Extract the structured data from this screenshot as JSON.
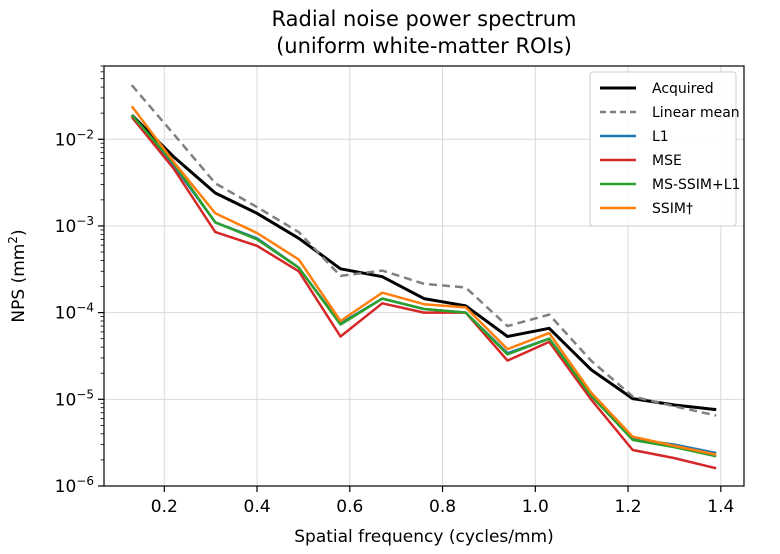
{
  "chart_data": {
    "type": "line",
    "title": [
      "Radial noise power spectrum",
      "(uniform white-matter ROIs)"
    ],
    "xlabel": "Spatial frequency (cycles/mm)",
    "ylabel": "NPS (mm²)",
    "xlim": [
      0.07,
      1.45
    ],
    "ylim": [
      1e-06,
      0.07
    ],
    "yscale": "log",
    "grid": true,
    "legend_position": "top-right",
    "x_ticks": [
      0.2,
      0.4,
      0.6,
      0.8,
      1.0,
      1.2,
      1.4
    ],
    "x_tick_labels": [
      "0.2",
      "0.4",
      "0.6",
      "0.8",
      "1.0",
      "1.2",
      "1.4"
    ],
    "y_ticks": [
      {
        "value": 1e-06,
        "base": "10",
        "exp": "−6"
      },
      {
        "value": 1e-05,
        "base": "10",
        "exp": "−5"
      },
      {
        "value": 0.0001,
        "base": "10",
        "exp": "−4"
      },
      {
        "value": 0.001,
        "base": "10",
        "exp": "−3"
      },
      {
        "value": 0.01,
        "base": "10",
        "exp": "−2"
      }
    ],
    "x": [
      0.13,
      0.22,
      0.31,
      0.4,
      0.49,
      0.58,
      0.67,
      0.76,
      0.85,
      0.94,
      1.03,
      1.12,
      1.21,
      1.3,
      1.39
    ],
    "series": [
      {
        "name": "Acquired",
        "color": "#000000",
        "dash": "",
        "width": 3,
        "values": [
          0.019,
          0.0063,
          0.0024,
          0.0014,
          0.00072,
          0.00032,
          0.00026,
          0.000145,
          0.00012,
          5.3e-05,
          6.6e-05,
          2.2e-05,
          1.02e-05,
          8.6e-06,
          7.6e-06
        ]
      },
      {
        "name": "Linear mean",
        "color": "#808080",
        "dash": "8,5",
        "width": 2.5,
        "values": [
          0.042,
          0.0115,
          0.0031,
          0.00165,
          0.00085,
          0.000265,
          0.000305,
          0.000215,
          0.000195,
          7e-05,
          9.5e-05,
          2.8e-05,
          1.08e-05,
          8.3e-06,
          6.5e-06
        ]
      },
      {
        "name": "L1",
        "color": "#1f77b4",
        "dash": "",
        "width": 2.5,
        "values": [
          0.019,
          0.005,
          0.0011,
          0.00072,
          0.00033,
          7.5e-05,
          0.000145,
          0.00011,
          0.0001,
          3.4e-05,
          5e-05,
          1.15e-05,
          3.5e-06,
          3e-06,
          2.4e-06
        ]
      },
      {
        "name": "MSE",
        "color": "#d62728",
        "dash": "",
        "width": 2.5,
        "values": [
          0.018,
          0.0046,
          0.00085,
          0.00059,
          0.0003,
          5.3e-05,
          0.000128,
          0.0001,
          0.0001,
          2.8e-05,
          4.6e-05,
          1e-05,
          2.6e-06,
          2.1e-06,
          1.6e-06
        ]
      },
      {
        "name": "MS-SSIM+L1",
        "color": "#2ca02c",
        "dash": "",
        "width": 2.5,
        "values": [
          0.019,
          0.0053,
          0.0011,
          0.0007,
          0.00033,
          7.3e-05,
          0.000145,
          0.00011,
          0.0001,
          3.3e-05,
          5e-05,
          1.1e-05,
          3.4e-06,
          2.8e-06,
          2.2e-06
        ]
      },
      {
        "name": "SSIM†",
        "color": "#ff7f0e",
        "dash": "",
        "width": 2.5,
        "values": [
          0.024,
          0.0055,
          0.0014,
          0.00083,
          0.00041,
          8e-05,
          0.00017,
          0.000125,
          0.000115,
          3.8e-05,
          5.8e-05,
          1.2e-05,
          3.7e-06,
          2.9e-06,
          2.3e-06
        ]
      }
    ]
  }
}
